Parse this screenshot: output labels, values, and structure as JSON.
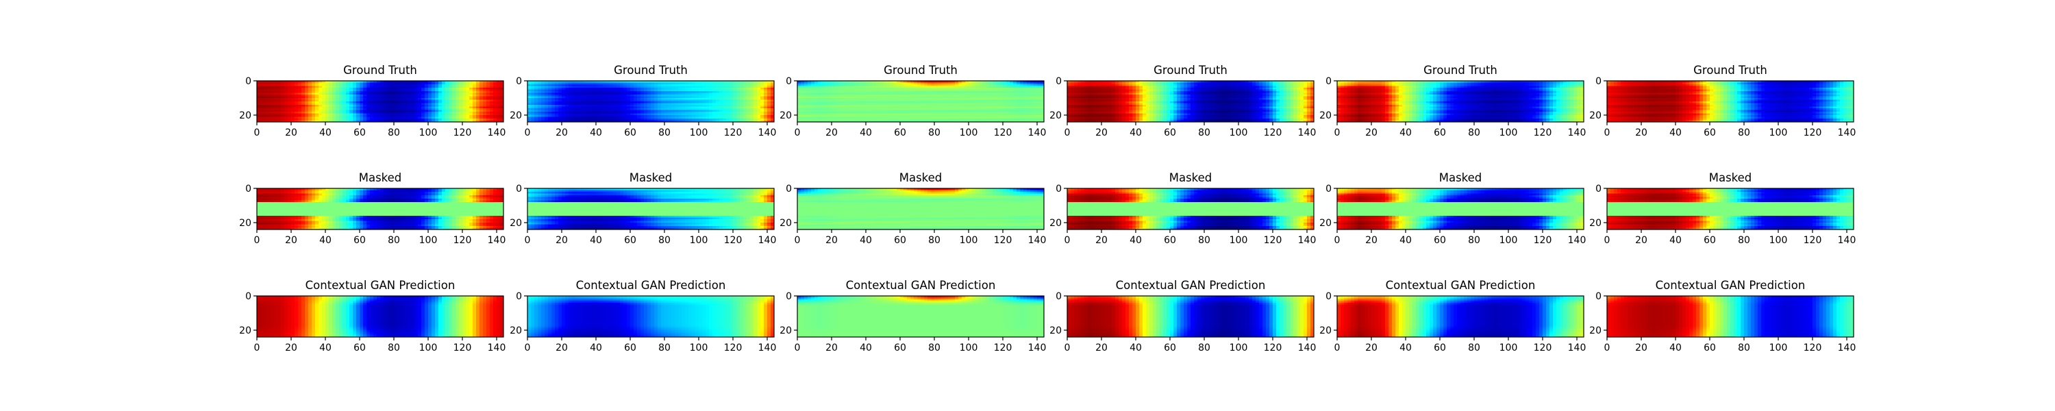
{
  "figure": {
    "rows": [
      {
        "title": "Ground Truth"
      },
      {
        "title": "Masked"
      },
      {
        "title": "Contextual GAN Prediction"
      }
    ],
    "colormap": "jet",
    "colormap_stops": [
      "#00007f",
      "#0000ff",
      "#00ffff",
      "#7fff7f",
      "#ffff00",
      "#ff0000",
      "#7f0000"
    ]
  },
  "chart_data": {
    "type": "heatmap",
    "grid": {
      "rows": 3,
      "cols": 6
    },
    "x": {
      "ticks": [
        0,
        20,
        40,
        60,
        80,
        100,
        120,
        140
      ],
      "xlim": [
        0,
        144
      ]
    },
    "y": {
      "ticks": [
        0,
        20
      ],
      "ylim": [
        24,
        0
      ]
    },
    "mask_rows": [
      8,
      16
    ],
    "masked_fill_value": 0.5,
    "samples": [
      {
        "profile": [
          0.95,
          0.92,
          0.82,
          0.62,
          0.35,
          0.12,
          0.05,
          0.1,
          0.28,
          0.55,
          0.78,
          0.9
        ],
        "band_top": [
          0.9,
          0.9,
          0.82,
          0.68,
          0.45,
          0.25,
          0.12,
          0.1,
          0.22,
          0.5,
          0.75,
          0.88
        ],
        "band_bottom": [
          0.92,
          0.9,
          0.8,
          0.62,
          0.4,
          0.2,
          0.1,
          0.12,
          0.3,
          0.55,
          0.78,
          0.9
        ]
      },
      {
        "profile": [
          0.3,
          0.22,
          0.12,
          0.1,
          0.12,
          0.2,
          0.28,
          0.3,
          0.32,
          0.38,
          0.55,
          0.82
        ],
        "band_top": [
          0.35,
          0.3,
          0.28,
          0.3,
          0.32,
          0.34,
          0.35,
          0.36,
          0.38,
          0.42,
          0.5,
          0.7
        ],
        "band_bottom": [
          0.25,
          0.15,
          0.06,
          0.05,
          0.08,
          0.16,
          0.22,
          0.26,
          0.3,
          0.36,
          0.55,
          0.85
        ]
      },
      {
        "profile": [
          0.5,
          0.48,
          0.5,
          0.5,
          0.5,
          0.5,
          0.5,
          0.5,
          0.5,
          0.5,
          0.48,
          0.5
        ],
        "band_top": [
          0.15,
          0.3,
          0.42,
          0.5,
          0.6,
          0.78,
          0.9,
          0.85,
          0.6,
          0.4,
          0.2,
          0.1
        ],
        "band_bottom": [
          0.5,
          0.5,
          0.5,
          0.5,
          0.5,
          0.5,
          0.5,
          0.5,
          0.5,
          0.5,
          0.5,
          0.5
        ]
      },
      {
        "profile": [
          0.92,
          0.98,
          0.95,
          0.78,
          0.52,
          0.25,
          0.08,
          0.02,
          0.06,
          0.22,
          0.5,
          0.8
        ],
        "band_top": [
          0.75,
          0.82,
          0.8,
          0.7,
          0.5,
          0.32,
          0.2,
          0.15,
          0.2,
          0.32,
          0.55,
          0.72
        ],
        "band_bottom": [
          0.95,
          1.0,
          0.98,
          0.8,
          0.5,
          0.2,
          0.05,
          0.0,
          0.05,
          0.2,
          0.5,
          0.82
        ]
      },
      {
        "profile": [
          0.82,
          0.95,
          0.88,
          0.62,
          0.35,
          0.18,
          0.1,
          0.06,
          0.08,
          0.18,
          0.38,
          0.6
        ],
        "band_top": [
          0.62,
          0.7,
          0.72,
          0.6,
          0.45,
          0.35,
          0.28,
          0.22,
          0.2,
          0.22,
          0.3,
          0.4
        ],
        "band_bottom": [
          0.85,
          0.98,
          0.9,
          0.6,
          0.3,
          0.12,
          0.05,
          0.04,
          0.06,
          0.2,
          0.45,
          0.65
        ]
      },
      {
        "profile": [
          0.85,
          0.92,
          0.96,
          0.95,
          0.82,
          0.58,
          0.3,
          0.15,
          0.1,
          0.14,
          0.28,
          0.45
        ],
        "band_top": [
          0.75,
          0.85,
          0.9,
          0.88,
          0.75,
          0.52,
          0.3,
          0.18,
          0.12,
          0.14,
          0.25,
          0.4
        ],
        "band_bottom": [
          0.85,
          0.9,
          0.95,
          0.92,
          0.78,
          0.55,
          0.3,
          0.15,
          0.1,
          0.12,
          0.25,
          0.45
        ]
      }
    ]
  }
}
